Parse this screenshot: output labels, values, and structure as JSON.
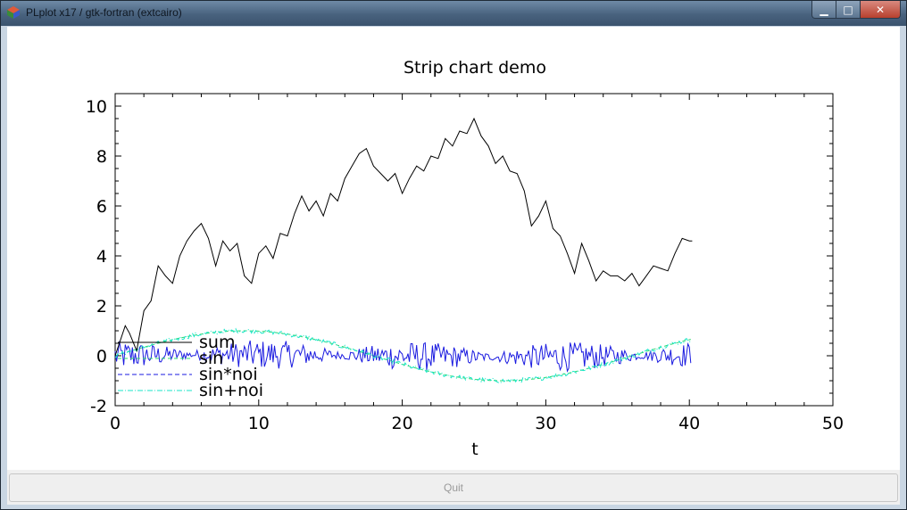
{
  "window": {
    "title": "PLplot x17 / gtk-fortran (extcairo)",
    "minimize_glyph": "▁",
    "maximize_glyph": "□",
    "close_glyph": "✕",
    "quit_label": "Quit"
  },
  "chart_data": {
    "type": "line",
    "title": "Strip chart demo",
    "xlabel": "t",
    "ylabel": "",
    "xlim": [
      0,
      50
    ],
    "ylim": [
      -2,
      10.5
    ],
    "xticks": [
      "0",
      "10",
      "20",
      "30",
      "40",
      "50"
    ],
    "yticks": [
      "-2",
      "0",
      "2",
      "4",
      "6",
      "8",
      "10"
    ],
    "grid": false,
    "legend_position": "bottom-left",
    "series": [
      {
        "name": "sum",
        "color": "#000000",
        "style": "solid",
        "x": [
          0,
          0.7,
          1.0,
          1.5,
          2.0,
          2.5,
          3.0,
          3.5,
          4.0,
          4.5,
          5.0,
          5.5,
          6.0,
          6.5,
          7.0,
          7.5,
          8.0,
          8.5,
          9.0,
          9.5,
          10.0,
          10.5,
          11.0,
          11.5,
          12.0,
          12.5,
          13.0,
          13.5,
          14.0,
          14.5,
          15.0,
          15.5,
          16.0,
          16.5,
          17.0,
          17.5,
          18.0,
          18.5,
          19.0,
          19.5,
          20.0,
          20.5,
          21.0,
          21.5,
          22.0,
          22.5,
          23.0,
          23.5,
          24.0,
          24.5,
          25.0,
          25.5,
          26.0,
          26.5,
          27.0,
          27.5,
          28.0,
          28.5,
          29.0,
          29.5,
          30.0,
          30.5,
          31.0,
          31.5,
          32.0,
          32.5,
          33.0,
          33.5,
          34.0,
          34.5,
          35.0,
          35.5,
          36.0,
          36.5,
          37.0,
          37.5,
          38.0,
          38.5,
          39.0,
          39.5,
          40.0,
          40.2
        ],
        "y": [
          0,
          1.2,
          0.9,
          0.2,
          1.8,
          2.2,
          3.6,
          3.2,
          2.9,
          4.0,
          4.6,
          5.0,
          5.3,
          4.7,
          3.6,
          4.6,
          4.2,
          4.5,
          3.2,
          2.9,
          4.1,
          4.4,
          3.9,
          4.9,
          4.8,
          5.7,
          6.4,
          5.8,
          6.2,
          5.6,
          6.5,
          6.2,
          7.1,
          7.6,
          8.1,
          8.3,
          7.6,
          7.3,
          7.0,
          7.3,
          6.5,
          7.1,
          7.6,
          7.4,
          8.0,
          7.9,
          8.7,
          8.4,
          9.0,
          8.9,
          9.5,
          8.8,
          8.4,
          7.7,
          8.0,
          7.4,
          7.3,
          6.6,
          5.2,
          5.6,
          6.2,
          5.1,
          4.8,
          4.1,
          3.3,
          4.5,
          3.8,
          3.0,
          3.4,
          3.2,
          3.2,
          3.0,
          3.3,
          2.8,
          3.2,
          3.6,
          3.5,
          3.4,
          4.1,
          4.7,
          4.6,
          4.6
        ]
      },
      {
        "name": "sin",
        "color": "#2bd86b",
        "style": "dashed"
      },
      {
        "name": "sin*noi",
        "color": "#1a1ae0",
        "style": "dashed"
      },
      {
        "name": "sin+noi",
        "color": "#18e6c8",
        "style": "dash-dot"
      }
    ]
  }
}
